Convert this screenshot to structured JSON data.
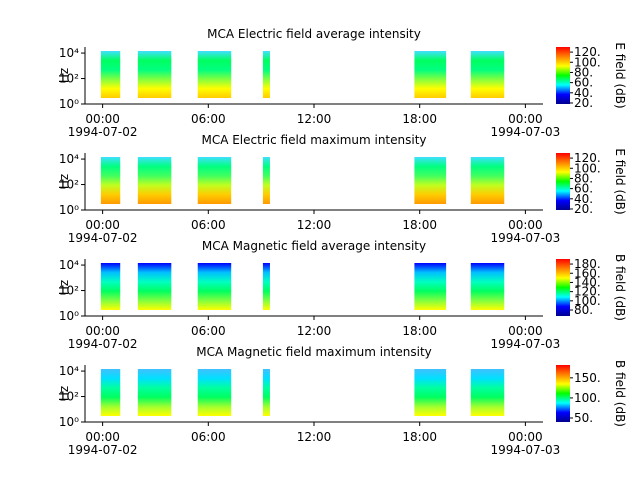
{
  "chart_data": [
    {
      "type": "spectrogram",
      "title": "MCA  Electric field average intensity",
      "ylabel": "Hz",
      "clabel": "E field (dB)",
      "xlim": [
        -1,
        25
      ],
      "xticks": [
        {
          "value": 0,
          "label": "00:00"
        },
        {
          "value": 6,
          "label": "06:00"
        },
        {
          "value": 12,
          "label": "12:00"
        },
        {
          "value": 18,
          "label": "18:00"
        },
        {
          "value": 24,
          "label": "00:00"
        }
      ],
      "date_labels": [
        {
          "value": 0,
          "label": "1994-07-02"
        },
        {
          "value": 24,
          "label": "1994-07-03"
        }
      ],
      "ylim": [
        1,
        30000
      ],
      "log_y": true,
      "yticks": [
        {
          "value": 1,
          "label": "10⁰"
        },
        {
          "value": 100,
          "label": "10²"
        },
        {
          "value": 10000,
          "label": "10⁴"
        }
      ],
      "clim": [
        18,
        130
      ],
      "cticks": [
        {
          "value": 20,
          "label": "20."
        },
        {
          "value": 40,
          "label": "40."
        },
        {
          "value": 60,
          "label": "60."
        },
        {
          "value": 80,
          "label": "80."
        },
        {
          "value": 100,
          "label": "100."
        },
        {
          "value": 120,
          "label": "120."
        }
      ],
      "colormap": [
        "#00008f",
        "#0000ff",
        "#00ffff",
        "#00ff00",
        "#ffff00",
        "#ff8000",
        "#ff0000"
      ],
      "segments": [
        [
          -0.1,
          1.0
        ],
        [
          2.0,
          3.9
        ],
        [
          5.4,
          7.3
        ],
        [
          9.1,
          9.5
        ],
        [
          17.7,
          19.5
        ],
        [
          20.9,
          22.8
        ]
      ],
      "segment_colors": [
        "#ffcc00",
        "#ffff00",
        "#80ff40",
        "#00ff80",
        "#00ff60",
        "#40e0ff"
      ]
    },
    {
      "type": "spectrogram",
      "title": "MCA  Electric field maximum intensity",
      "ylabel": "Hz",
      "clabel": "E field (dB)",
      "xlim": [
        -1,
        25
      ],
      "xticks": [
        {
          "value": 0,
          "label": "00:00"
        },
        {
          "value": 6,
          "label": "06:00"
        },
        {
          "value": 12,
          "label": "12:00"
        },
        {
          "value": 18,
          "label": "18:00"
        },
        {
          "value": 24,
          "label": "00:00"
        }
      ],
      "date_labels": [
        {
          "value": 0,
          "label": "1994-07-02"
        },
        {
          "value": 24,
          "label": "1994-07-03"
        }
      ],
      "ylim": [
        1,
        30000
      ],
      "log_y": true,
      "yticks": [
        {
          "value": 1,
          "label": "10⁰"
        },
        {
          "value": 100,
          "label": "10²"
        },
        {
          "value": 10000,
          "label": "10⁴"
        }
      ],
      "clim": [
        18,
        130
      ],
      "cticks": [
        {
          "value": 20,
          "label": "20."
        },
        {
          "value": 40,
          "label": "40."
        },
        {
          "value": 60,
          "label": "60."
        },
        {
          "value": 80,
          "label": "80."
        },
        {
          "value": 100,
          "label": "100."
        },
        {
          "value": 120,
          "label": "120."
        }
      ],
      "colormap": [
        "#00008f",
        "#0000ff",
        "#00ffff",
        "#00ff00",
        "#ffff00",
        "#ff8000",
        "#ff0000"
      ],
      "segments": [
        [
          -0.1,
          1.0
        ],
        [
          2.0,
          3.9
        ],
        [
          5.4,
          7.3
        ],
        [
          9.1,
          9.5
        ],
        [
          17.7,
          19.5
        ],
        [
          20.9,
          22.8
        ]
      ],
      "segment_colors": [
        "#ff9900",
        "#ffcc00",
        "#c0ff20",
        "#40ff60",
        "#00ff80",
        "#40e0ff"
      ]
    },
    {
      "type": "spectrogram",
      "title": "MCA  Magnetic field average intensity",
      "ylabel": "Hz",
      "clabel": "B field (dB)",
      "xlim": [
        -1,
        25
      ],
      "xticks": [
        {
          "value": 0,
          "label": "00:00"
        },
        {
          "value": 6,
          "label": "06:00"
        },
        {
          "value": 12,
          "label": "12:00"
        },
        {
          "value": 18,
          "label": "18:00"
        },
        {
          "value": 24,
          "label": "00:00"
        }
      ],
      "date_labels": [
        {
          "value": 0,
          "label": "1994-07-02"
        },
        {
          "value": 24,
          "label": "1994-07-03"
        }
      ],
      "ylim": [
        1,
        30000
      ],
      "log_y": true,
      "yticks": [
        {
          "value": 1,
          "label": "10⁰"
        },
        {
          "value": 100,
          "label": "10²"
        },
        {
          "value": 10000,
          "label": "10⁴"
        }
      ],
      "clim": [
        67,
        191
      ],
      "cticks": [
        {
          "value": 80,
          "label": "80."
        },
        {
          "value": 100,
          "label": "100."
        },
        {
          "value": 120,
          "label": "120."
        },
        {
          "value": 140,
          "label": "140."
        },
        {
          "value": 160,
          "label": "160."
        },
        {
          "value": 180,
          "label": "180."
        }
      ],
      "colormap": [
        "#00008f",
        "#0000ff",
        "#00ffff",
        "#00ff00",
        "#ffff00",
        "#ff8000",
        "#ff0000"
      ],
      "segments": [
        [
          -0.1,
          1.0
        ],
        [
          2.0,
          3.9
        ],
        [
          5.4,
          7.3
        ],
        [
          9.1,
          9.5
        ],
        [
          17.7,
          19.5
        ],
        [
          20.9,
          22.8
        ]
      ],
      "segment_colors": [
        "#ffff00",
        "#80ff40",
        "#00ff60",
        "#00ffc0",
        "#00c0ff",
        "#0000ff"
      ]
    },
    {
      "type": "spectrogram",
      "title": "MCA  Magnetic field maximum intensity",
      "ylabel": "Hz",
      "clabel": "B field (dB)",
      "xlim": [
        -1,
        25
      ],
      "xticks": [
        {
          "value": 0,
          "label": "00:00"
        },
        {
          "value": 6,
          "label": "06:00"
        },
        {
          "value": 12,
          "label": "12:00"
        },
        {
          "value": 18,
          "label": "18:00"
        },
        {
          "value": 24,
          "label": "00:00"
        }
      ],
      "date_labels": [
        {
          "value": 0,
          "label": "1994-07-02"
        },
        {
          "value": 24,
          "label": "1994-07-03"
        }
      ],
      "ylim": [
        1,
        30000
      ],
      "log_y": true,
      "yticks": [
        {
          "value": 1,
          "label": "10⁰"
        },
        {
          "value": 100,
          "label": "10²"
        },
        {
          "value": 10000,
          "label": "10⁴"
        }
      ],
      "clim": [
        40,
        182
      ],
      "cticks": [
        {
          "value": 50,
          "label": "50."
        },
        {
          "value": 100,
          "label": "100."
        },
        {
          "value": 150,
          "label": "150."
        }
      ],
      "colormap": [
        "#00008f",
        "#0000ff",
        "#00ffff",
        "#00ff00",
        "#ffff00",
        "#ff8000",
        "#ff0000"
      ],
      "segments": [
        [
          -0.1,
          1.0
        ],
        [
          2.0,
          3.9
        ],
        [
          5.4,
          7.3
        ],
        [
          9.1,
          9.5
        ],
        [
          17.7,
          19.5
        ],
        [
          20.9,
          22.8
        ]
      ],
      "segment_colors": [
        "#ffff00",
        "#a0ff30",
        "#00ff60",
        "#00ffa0",
        "#00e0ff",
        "#40c0ff"
      ]
    }
  ]
}
